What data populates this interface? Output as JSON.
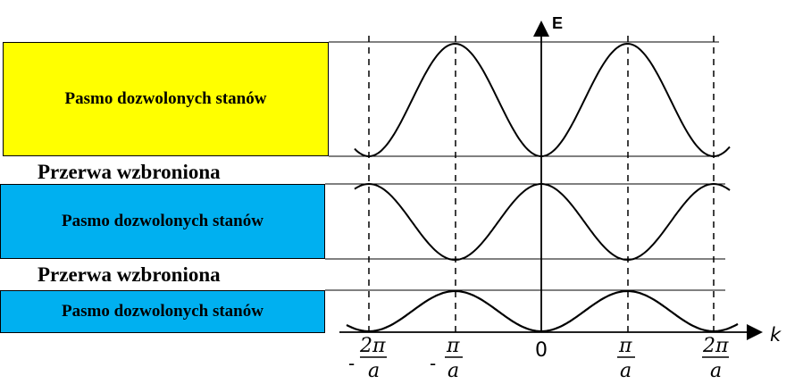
{
  "bands": [
    {
      "label": "Pasmo dozwolonych stanów",
      "color": "#ffff00"
    },
    {
      "label": "Pasmo dozwolonych stanów",
      "color": "#00b0f0"
    },
    {
      "label": "Pasmo dozwolonych stanów",
      "color": "#00b0f0"
    }
  ],
  "gaps": [
    {
      "label": "Przerwa wzbroniona"
    },
    {
      "label": "Przerwa wzbroniona"
    }
  ],
  "axes": {
    "y_label": "E",
    "x_label": "k"
  },
  "ticks": [
    {
      "sign": "-",
      "num": "2π",
      "den": "a"
    },
    {
      "sign": "-",
      "num": "π",
      "den": "a"
    },
    {
      "sign": "",
      "num": "",
      "den": "",
      "zero": "0"
    },
    {
      "sign": "",
      "num": "π",
      "den": "a"
    },
    {
      "sign": "",
      "num": "2π",
      "den": "a"
    }
  ],
  "colors": {
    "upper_band": "#ffff00",
    "lower_bands": "#00b0f0",
    "curve": "#000000"
  }
}
